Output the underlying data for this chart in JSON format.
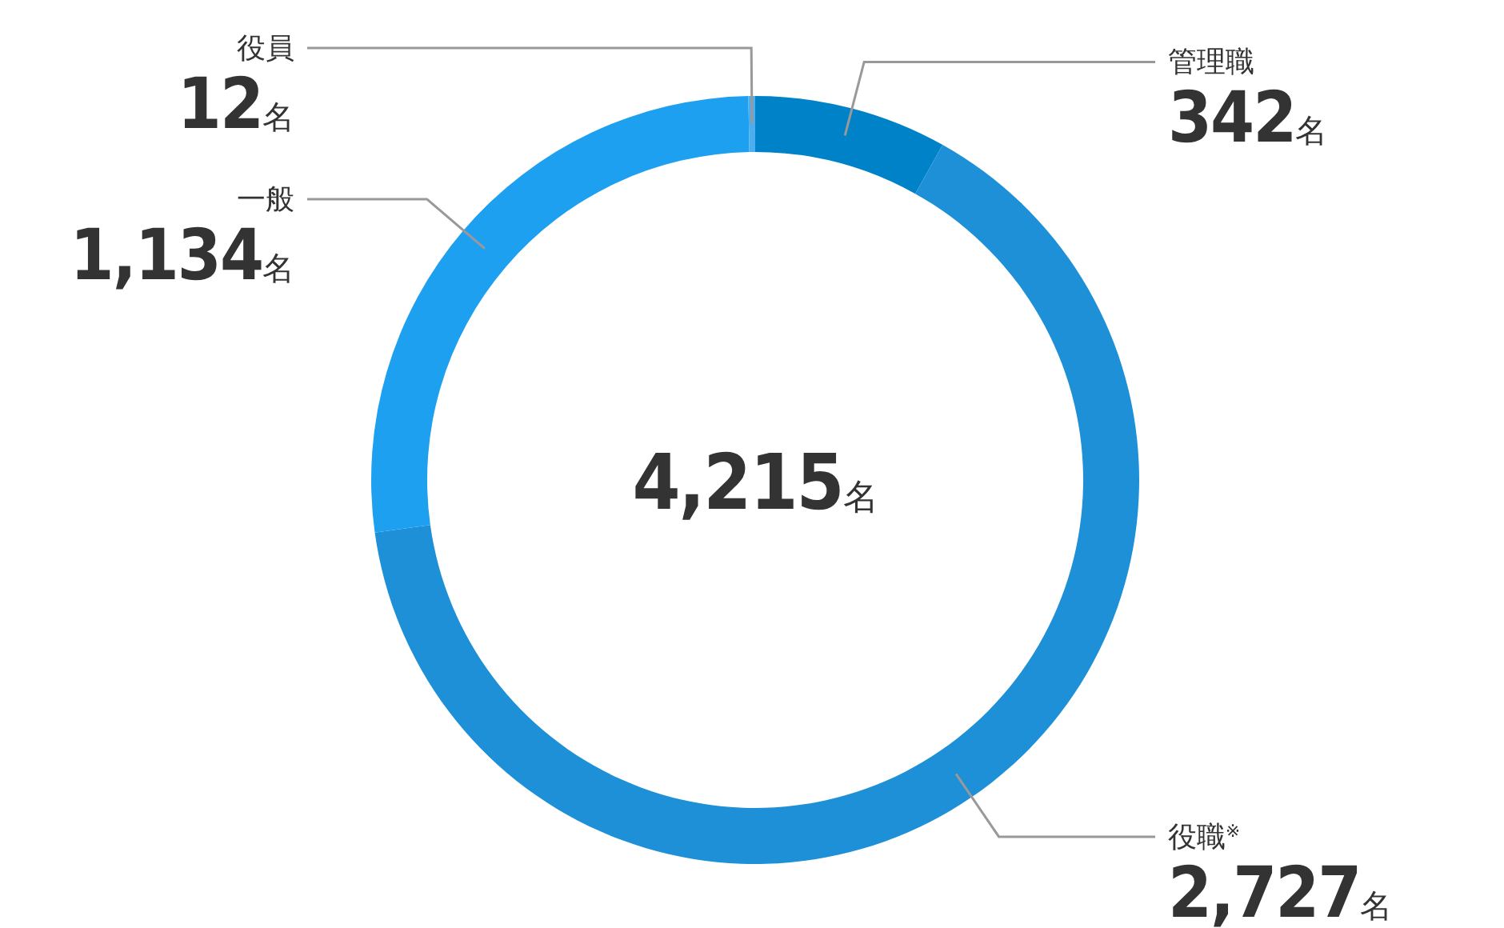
{
  "chart_data": {
    "type": "donut",
    "categories": [
      "管理職",
      "役職$^{※}$",
      "一般",
      "役員"
    ],
    "values": [
      342,
      2727,
      1134,
      12
    ],
    "colors": [
      "#0082c8",
      "#1e90d8",
      "#1ea0f0",
      "#4aaef0"
    ],
    "value_labels": [
      "342名",
      "2,727名",
      "1,134名",
      "12名"
    ],
    "annotations": [
      "4,215名"
    ]
  }
}
